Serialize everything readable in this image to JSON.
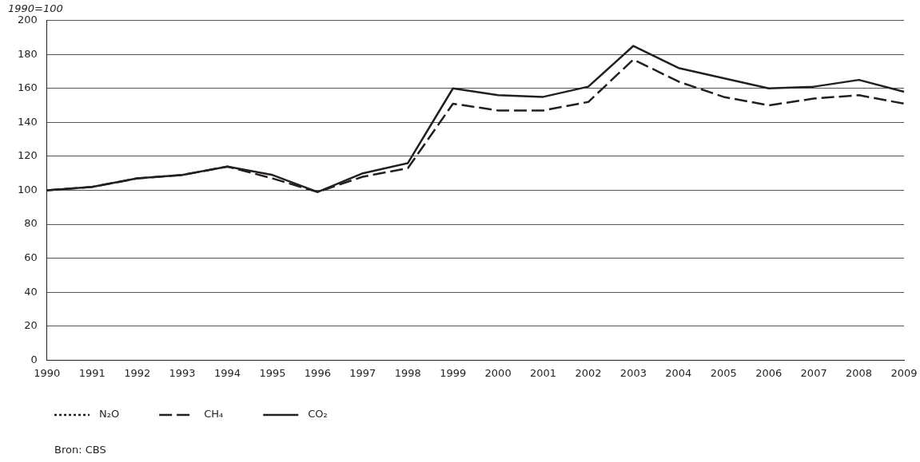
{
  "chart_data": {
    "type": "line",
    "subtitle": "1990=100",
    "annotations": [
      "Bron: CBS"
    ],
    "categories": [
      "1990",
      "1991",
      "1992",
      "1993",
      "1994",
      "1995",
      "1996",
      "1997",
      "1998",
      "1999",
      "2000",
      "2001",
      "2002",
      "2003",
      "2004",
      "2005",
      "2006",
      "2007",
      "2008",
      "2009"
    ],
    "series": [
      {
        "name": "N₂O",
        "color": "#231f20",
        "line_style": "dotted",
        "values": [
          null,
          null,
          null,
          null,
          null,
          null,
          null,
          null,
          null,
          null,
          null,
          null,
          null,
          null,
          null,
          null,
          null,
          null,
          null,
          null
        ]
      },
      {
        "name": "CH₄",
        "color": "#231f20",
        "line_style": "dashed",
        "values": [
          100,
          102,
          107,
          109,
          114,
          107,
          99,
          108,
          113,
          151,
          147,
          147,
          152,
          177,
          164,
          155,
          150,
          154,
          156,
          151
        ]
      },
      {
        "name": "CO₂",
        "color": "#231f20",
        "line_style": "solid",
        "values": [
          100,
          102,
          107,
          109,
          114,
          109,
          99,
          110,
          116,
          160,
          156,
          155,
          161,
          185,
          172,
          166,
          160,
          161,
          165,
          158
        ]
      }
    ],
    "ylim": [
      0,
      200
    ],
    "yticks": [
      0,
      20,
      40,
      60,
      80,
      100,
      120,
      140,
      160,
      180,
      200
    ],
    "grid": "y",
    "legend": "bottom left",
    "marker": "none"
  }
}
